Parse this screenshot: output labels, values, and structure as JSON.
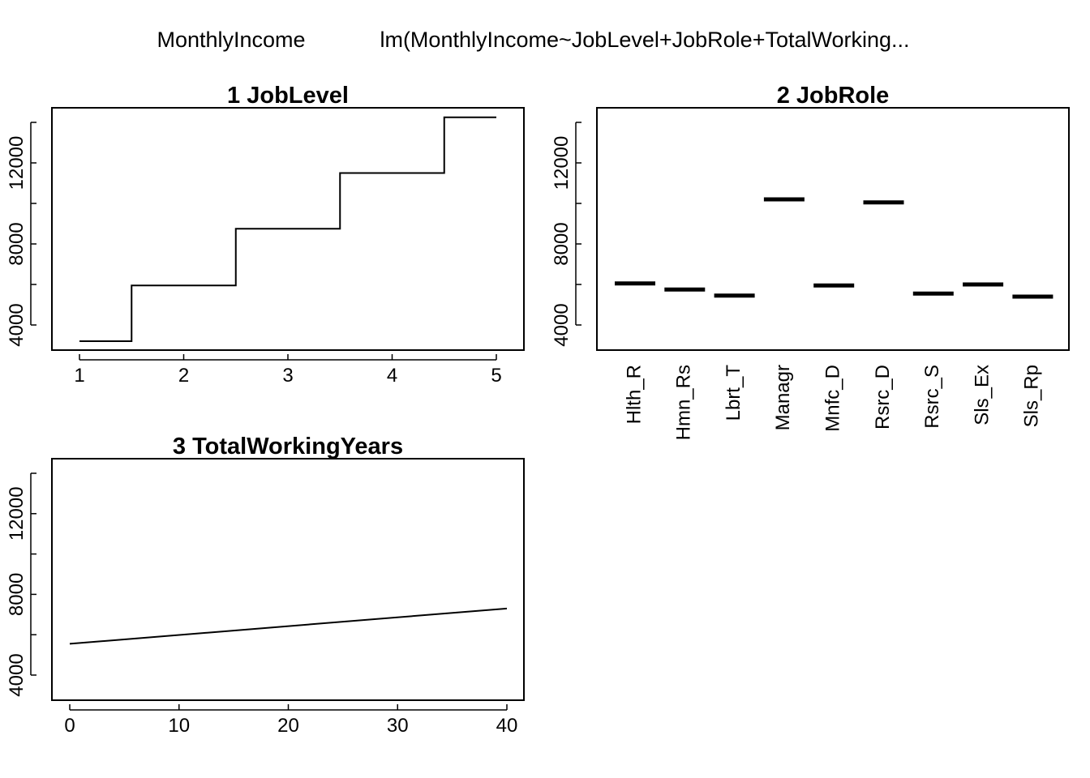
{
  "header": {
    "response": "MonthlyIncome",
    "model": "lm(MonthlyIncome~JobLevel+JobRole+TotalWorking..."
  },
  "colors": {
    "line": "#000000",
    "background": "#ffffff"
  },
  "chart_data": [
    {
      "type": "line",
      "title": "1  JobLevel",
      "step": true,
      "x": [
        1,
        2,
        3,
        4,
        5
      ],
      "values": [
        3200,
        5950,
        8750,
        11500,
        14250
      ],
      "ylim": [
        3000,
        15000
      ],
      "yticks": [
        4000,
        6000,
        8000,
        10000,
        12000,
        14000
      ],
      "ytick_labels": [
        "4000",
        "",
        "8000",
        "",
        "12000",
        ""
      ],
      "xticks": [
        1,
        2,
        3,
        4,
        5
      ],
      "xtick_labels": [
        "1",
        "2",
        "3",
        "4",
        "5"
      ]
    },
    {
      "type": "bar",
      "title": "2  JobRole",
      "categories": [
        "Hlth_R",
        "Hmn_Rs",
        "Lbrt_T",
        "Managr",
        "Mnfc_D",
        "Rsrc_D",
        "Rsrc_S",
        "Sls_Ex",
        "Sls_Rp"
      ],
      "values": [
        6050,
        5750,
        5450,
        10200,
        5950,
        10050,
        5550,
        6000,
        5400
      ],
      "ylim": [
        3000,
        15000
      ],
      "yticks": [
        4000,
        6000,
        8000,
        10000,
        12000,
        14000
      ],
      "ytick_labels": [
        "4000",
        "",
        "8000",
        "",
        "12000",
        ""
      ]
    },
    {
      "type": "line",
      "title": "3  TotalWorkingYears",
      "x": [
        0,
        40
      ],
      "values": [
        5550,
        7300
      ],
      "ylim": [
        3000,
        15000
      ],
      "yticks": [
        4000,
        6000,
        8000,
        10000,
        12000,
        14000
      ],
      "ytick_labels": [
        "4000",
        "",
        "8000",
        "",
        "12000",
        ""
      ],
      "xticks": [
        0,
        10,
        20,
        30,
        40
      ],
      "xtick_labels": [
        "0",
        "10",
        "20",
        "30",
        "40"
      ]
    }
  ]
}
